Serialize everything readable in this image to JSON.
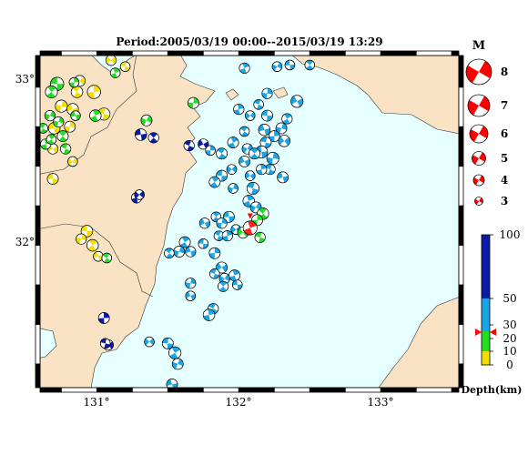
{
  "title": "Period:2005/03/19 00:00--2015/03/19 13:29",
  "axes": {
    "lon_ticks": [
      {
        "value": 131,
        "label": "131°"
      },
      {
        "value": 132,
        "label": "132°"
      },
      {
        "value": 133,
        "label": "133°"
      }
    ],
    "lat_ticks": [
      {
        "value": 33,
        "label": "33°"
      },
      {
        "value": 32,
        "label": "32°"
      }
    ],
    "lon_range": [
      130.6,
      133.55
    ],
    "lat_range": [
      31.1,
      33.2
    ]
  },
  "magnitude_legend": {
    "title": "M",
    "levels": [
      "8",
      "7",
      "6",
      "5",
      "4",
      "3"
    ]
  },
  "depth_legend": {
    "title": "Depth(km)",
    "ticks": [
      "100",
      "50",
      "30",
      "20",
      "10",
      "0"
    ],
    "colors": [
      {
        "range": "0-10",
        "color": "#f2de00"
      },
      {
        "range": "10-30",
        "color": "#22dd22"
      },
      {
        "range": "30-60",
        "color": "#1aa6e6"
      },
      {
        "range": "60-100",
        "color": "#0c1aa8"
      }
    ],
    "marker_depth": "25"
  },
  "colors": {
    "sea": "#e6ffff",
    "land": "#fae2c4",
    "compression": "#ff0000",
    "frame": "#000000"
  },
  "mechanisms": [
    {
      "lon": 130.72,
      "lat": 33.02,
      "m": 3.6,
      "c": "#22dd22"
    },
    {
      "lon": 130.68,
      "lat": 32.97,
      "m": 3.4,
      "c": "#22dd22"
    },
    {
      "lon": 130.75,
      "lat": 32.88,
      "m": 3.4,
      "c": "#f2de00"
    },
    {
      "lon": 130.83,
      "lat": 32.86,
      "m": 3.3,
      "c": "#f2de00"
    },
    {
      "lon": 130.86,
      "lat": 32.97,
      "m": 3.3,
      "c": "#f2de00"
    },
    {
      "lon": 130.98,
      "lat": 32.97,
      "m": 3.6,
      "c": "#f2de00"
    },
    {
      "lon": 130.88,
      "lat": 33.04,
      "m": 3.2,
      "c": "#f2de00"
    },
    {
      "lon": 131.05,
      "lat": 32.83,
      "m": 3.4,
      "c": "#f2de00"
    },
    {
      "lon": 130.99,
      "lat": 32.82,
      "m": 3.3,
      "c": "#22dd22"
    },
    {
      "lon": 130.67,
      "lat": 32.82,
      "m": 3.1,
      "c": "#22dd22"
    },
    {
      "lon": 130.7,
      "lat": 32.74,
      "m": 3.3,
      "c": "#f2de00"
    },
    {
      "lon": 130.76,
      "lat": 32.69,
      "m": 3.2,
      "c": "#22dd22"
    },
    {
      "lon": 130.81,
      "lat": 32.75,
      "m": 3.2,
      "c": "#f2de00"
    },
    {
      "lon": 130.69,
      "lat": 32.61,
      "m": 3.1,
      "c": "#f2de00"
    },
    {
      "lon": 130.78,
      "lat": 32.61,
      "m": 3.1,
      "c": "#22dd22"
    },
    {
      "lon": 130.64,
      "lat": 32.64,
      "m": 3.1,
      "c": "#22dd22"
    },
    {
      "lon": 130.83,
      "lat": 32.53,
      "m": 3.0,
      "c": "#f2de00"
    },
    {
      "lon": 130.69,
      "lat": 32.42,
      "m": 3.2,
      "c": "#f2de00"
    },
    {
      "lon": 130.68,
      "lat": 32.67,
      "m": 3.0,
      "c": "#22dd22"
    },
    {
      "lon": 130.73,
      "lat": 32.78,
      "m": 3.1,
      "c": "#22dd22"
    },
    {
      "lon": 130.85,
      "lat": 32.82,
      "m": 3.0,
      "c": "#22dd22"
    },
    {
      "lon": 130.62,
      "lat": 32.74,
      "m": 3.0,
      "c": "#22dd22"
    },
    {
      "lon": 130.84,
      "lat": 33.03,
      "m": 3.0,
      "c": "#22dd22"
    },
    {
      "lon": 131.1,
      "lat": 33.17,
      "m": 3.1,
      "c": "#f2de00"
    },
    {
      "lon": 131.2,
      "lat": 33.13,
      "m": 3.0,
      "c": "#f2de00"
    },
    {
      "lon": 131.13,
      "lat": 33.09,
      "m": 3.0,
      "c": "#22dd22"
    },
    {
      "lon": 131.35,
      "lat": 32.79,
      "m": 3.2,
      "c": "#22dd22"
    },
    {
      "lon": 131.31,
      "lat": 32.7,
      "m": 3.3,
      "c": "#0c1aa8"
    },
    {
      "lon": 131.4,
      "lat": 32.68,
      "m": 3.1,
      "c": "#0c1aa8"
    },
    {
      "lon": 131.68,
      "lat": 32.9,
      "m": 3.2,
      "c": "#22dd22"
    },
    {
      "lon": 131.75,
      "lat": 32.64,
      "m": 3.1,
      "c": "#0c1aa8"
    },
    {
      "lon": 131.65,
      "lat": 32.63,
      "m": 3.1,
      "c": "#0c1aa8"
    },
    {
      "lon": 131.28,
      "lat": 32.3,
      "m": 3.1,
      "c": "#0c1aa8"
    },
    {
      "lon": 131.3,
      "lat": 32.32,
      "m": 3.0,
      "c": "#0c1aa8"
    },
    {
      "lon": 130.93,
      "lat": 32.09,
      "m": 3.3,
      "c": "#f2de00"
    },
    {
      "lon": 130.97,
      "lat": 32.0,
      "m": 3.3,
      "c": "#f2de00"
    },
    {
      "lon": 130.89,
      "lat": 32.04,
      "m": 3.1,
      "c": "#f2de00"
    },
    {
      "lon": 131.01,
      "lat": 31.93,
      "m": 3.0,
      "c": "#f2de00"
    },
    {
      "lon": 131.07,
      "lat": 31.92,
      "m": 3.0,
      "c": "#22dd22"
    },
    {
      "lon": 131.05,
      "lat": 31.54,
      "m": 3.2,
      "c": "#0c1aa8"
    },
    {
      "lon": 131.08,
      "lat": 31.37,
      "m": 3.1,
      "c": "#0c1aa8"
    },
    {
      "lon": 131.06,
      "lat": 31.38,
      "m": 3.0,
      "c": "#0c1aa8"
    },
    {
      "lon": 132.04,
      "lat": 33.12,
      "m": 3.1,
      "c": "#1aa6e6"
    },
    {
      "lon": 132.27,
      "lat": 33.13,
      "m": 3.0,
      "c": "#1aa6e6"
    },
    {
      "lon": 132.36,
      "lat": 33.14,
      "m": 3.0,
      "c": "#1aa6e6"
    },
    {
      "lon": 132.5,
      "lat": 33.14,
      "m": 3.0,
      "c": "#1aa6e6"
    },
    {
      "lon": 132.2,
      "lat": 32.96,
      "m": 3.1,
      "c": "#1aa6e6"
    },
    {
      "lon": 132.41,
      "lat": 32.91,
      "m": 3.4,
      "c": "#1aa6e6"
    },
    {
      "lon": 132.14,
      "lat": 32.89,
      "m": 3.0,
      "c": "#1aa6e6"
    },
    {
      "lon": 132.0,
      "lat": 32.86,
      "m": 3.1,
      "c": "#1aa6e6"
    },
    {
      "lon": 132.08,
      "lat": 32.82,
      "m": 3.0,
      "c": "#1aa6e6"
    },
    {
      "lon": 132.2,
      "lat": 32.82,
      "m": 3.2,
      "c": "#1aa6e6"
    },
    {
      "lon": 132.34,
      "lat": 32.8,
      "m": 3.1,
      "c": "#1aa6e6"
    },
    {
      "lon": 132.3,
      "lat": 32.74,
      "m": 3.2,
      "c": "#1aa6e6"
    },
    {
      "lon": 132.18,
      "lat": 32.73,
      "m": 3.3,
      "c": "#1aa6e6"
    },
    {
      "lon": 132.04,
      "lat": 32.72,
      "m": 3.0,
      "c": "#1aa6e6"
    },
    {
      "lon": 132.25,
      "lat": 32.69,
      "m": 3.2,
      "c": "#1aa6e6"
    },
    {
      "lon": 132.32,
      "lat": 32.66,
      "m": 3.3,
      "c": "#1aa6e6"
    },
    {
      "lon": 132.19,
      "lat": 32.65,
      "m": 3.2,
      "c": "#1aa6e6"
    },
    {
      "lon": 131.96,
      "lat": 32.65,
      "m": 3.2,
      "c": "#1aa6e6"
    },
    {
      "lon": 132.06,
      "lat": 32.61,
      "m": 3.1,
      "c": "#1aa6e6"
    },
    {
      "lon": 132.16,
      "lat": 32.59,
      "m": 3.4,
      "c": "#1aa6e6"
    },
    {
      "lon": 132.11,
      "lat": 32.58,
      "m": 3.2,
      "c": "#1aa6e6"
    },
    {
      "lon": 132.24,
      "lat": 32.55,
      "m": 3.4,
      "c": "#1aa6e6"
    },
    {
      "lon": 132.04,
      "lat": 32.53,
      "m": 3.2,
      "c": "#1aa6e6"
    },
    {
      "lon": 132.22,
      "lat": 32.48,
      "m": 3.1,
      "c": "#1aa6e6"
    },
    {
      "lon": 132.16,
      "lat": 32.48,
      "m": 3.1,
      "c": "#1aa6e6"
    },
    {
      "lon": 131.95,
      "lat": 32.48,
      "m": 3.0,
      "c": "#1aa6e6"
    },
    {
      "lon": 131.88,
      "lat": 32.44,
      "m": 3.2,
      "c": "#1aa6e6"
    },
    {
      "lon": 131.83,
      "lat": 32.4,
      "m": 3.2,
      "c": "#1aa6e6"
    },
    {
      "lon": 131.96,
      "lat": 32.36,
      "m": 3.0,
      "c": "#1aa6e6"
    },
    {
      "lon": 132.31,
      "lat": 32.43,
      "m": 3.2,
      "c": "#1aa6e6"
    },
    {
      "lon": 131.88,
      "lat": 32.58,
      "m": 3.2,
      "c": "#1aa6e6"
    },
    {
      "lon": 131.8,
      "lat": 32.6,
      "m": 3.0,
      "c": "#1aa6e6"
    },
    {
      "lon": 132.08,
      "lat": 32.44,
      "m": 3.0,
      "c": "#1aa6e6"
    },
    {
      "lon": 132.1,
      "lat": 32.36,
      "m": 3.4,
      "c": "#1aa6e6"
    },
    {
      "lon": 132.07,
      "lat": 32.28,
      "m": 3.3,
      "c": "#1aa6e6"
    },
    {
      "lon": 132.12,
      "lat": 32.24,
      "m": 3.2,
      "c": "#1aa6e6"
    },
    {
      "lon": 131.93,
      "lat": 32.18,
      "m": 3.2,
      "c": "#1aa6e6"
    },
    {
      "lon": 131.84,
      "lat": 32.18,
      "m": 3.0,
      "c": "#1aa6e6"
    },
    {
      "lon": 131.88,
      "lat": 32.14,
      "m": 3.1,
      "c": "#1aa6e6"
    },
    {
      "lon": 131.76,
      "lat": 32.14,
      "m": 3.1,
      "c": "#1aa6e6"
    },
    {
      "lon": 131.86,
      "lat": 32.06,
      "m": 3.0,
      "c": "#1aa6e6"
    },
    {
      "lon": 131.92,
      "lat": 32.06,
      "m": 3.1,
      "c": "#1aa6e6"
    },
    {
      "lon": 131.98,
      "lat": 32.1,
      "m": 3.0,
      "c": "#1aa6e6"
    },
    {
      "lon": 131.75,
      "lat": 32.01,
      "m": 3.0,
      "c": "#1aa6e6"
    },
    {
      "lon": 131.62,
      "lat": 32.02,
      "m": 3.2,
      "c": "#1aa6e6"
    },
    {
      "lon": 131.58,
      "lat": 31.96,
      "m": 3.2,
      "c": "#1aa6e6"
    },
    {
      "lon": 131.66,
      "lat": 31.96,
      "m": 3.1,
      "c": "#1aa6e6"
    },
    {
      "lon": 131.51,
      "lat": 31.95,
      "m": 3.0,
      "c": "#1aa6e6"
    },
    {
      "lon": 131.83,
      "lat": 31.95,
      "m": 3.2,
      "c": "#1aa6e6"
    },
    {
      "lon": 131.88,
      "lat": 31.86,
      "m": 3.2,
      "c": "#1aa6e6"
    },
    {
      "lon": 131.83,
      "lat": 31.82,
      "m": 3.0,
      "c": "#1aa6e6"
    },
    {
      "lon": 131.97,
      "lat": 31.81,
      "m": 3.2,
      "c": "#1aa6e6"
    },
    {
      "lon": 131.9,
      "lat": 31.79,
      "m": 3.1,
      "c": "#1aa6e6"
    },
    {
      "lon": 131.99,
      "lat": 31.75,
      "m": 3.0,
      "c": "#1aa6e6"
    },
    {
      "lon": 131.89,
      "lat": 31.74,
      "m": 3.1,
      "c": "#1aa6e6"
    },
    {
      "lon": 131.66,
      "lat": 31.76,
      "m": 3.1,
      "c": "#1aa6e6"
    },
    {
      "lon": 131.66,
      "lat": 31.68,
      "m": 3.0,
      "c": "#1aa6e6"
    },
    {
      "lon": 131.82,
      "lat": 31.6,
      "m": 3.1,
      "c": "#1aa6e6"
    },
    {
      "lon": 131.79,
      "lat": 31.56,
      "m": 3.3,
      "c": "#1aa6e6"
    },
    {
      "lon": 131.37,
      "lat": 31.39,
      "m": 3.0,
      "c": "#1aa6e6"
    },
    {
      "lon": 131.5,
      "lat": 31.38,
      "m": 3.2,
      "c": "#1aa6e6"
    },
    {
      "lon": 131.55,
      "lat": 31.32,
      "m": 3.4,
      "c": "#1aa6e6"
    },
    {
      "lon": 131.57,
      "lat": 31.25,
      "m": 3.2,
      "c": "#1aa6e6"
    },
    {
      "lon": 131.53,
      "lat": 31.12,
      "m": 3.2,
      "c": "#1aa6e6"
    },
    {
      "lon": 132.17,
      "lat": 32.2,
      "m": 3.3,
      "c": "#22dd22"
    },
    {
      "lon": 132.13,
      "lat": 32.16,
      "m": 3.2,
      "c": "#22dd22"
    },
    {
      "lon": 132.03,
      "lat": 32.08,
      "m": 3.2,
      "c": "#22dd22"
    },
    {
      "lon": 132.15,
      "lat": 32.05,
      "m": 3.1,
      "c": "#22dd22"
    },
    {
      "lon": 132.08,
      "lat": 32.11,
      "m": 3.7,
      "c": "#ff2020"
    }
  ]
}
